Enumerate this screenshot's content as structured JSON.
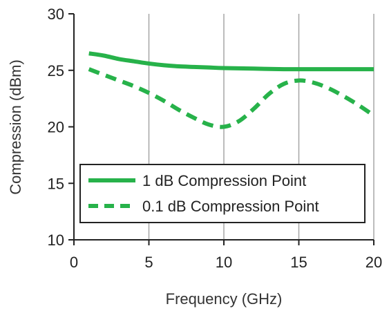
{
  "chart_data": {
    "type": "line",
    "xlabel": "Frequency (GHz)",
    "ylabel": "Compression (dBm)",
    "xlim": [
      0,
      20
    ],
    "ylim": [
      10,
      30
    ],
    "xticks": [
      "0",
      "5",
      "10",
      "15",
      "20"
    ],
    "yticks": [
      "10",
      "15",
      "20",
      "25",
      "30"
    ],
    "grid": "vertical",
    "legend_position": "bottom-inside",
    "series": [
      {
        "name": "1 dB Compression Point",
        "style": "solid",
        "color": "#27b24a",
        "x": [
          1,
          2,
          3,
          4,
          5,
          6,
          7,
          8,
          9,
          10,
          12,
          14,
          16,
          18,
          20
        ],
        "y": [
          26.5,
          26.3,
          26.0,
          25.8,
          25.6,
          25.45,
          25.35,
          25.3,
          25.25,
          25.2,
          25.15,
          25.1,
          25.1,
          25.1,
          25.1
        ]
      },
      {
        "name": "0.1 dB Compression Point",
        "style": "dashed",
        "color": "#27b24a",
        "x": [
          1,
          2,
          3,
          4,
          5,
          6,
          7,
          8,
          9,
          10,
          11,
          12,
          13,
          14,
          15,
          16,
          17,
          18,
          19,
          20
        ],
        "y": [
          25.1,
          24.6,
          24.1,
          23.6,
          23.0,
          22.3,
          21.5,
          20.8,
          20.2,
          20.0,
          20.5,
          21.6,
          22.9,
          23.8,
          24.1,
          23.9,
          23.4,
          22.7,
          21.9,
          21.0
        ]
      }
    ]
  }
}
